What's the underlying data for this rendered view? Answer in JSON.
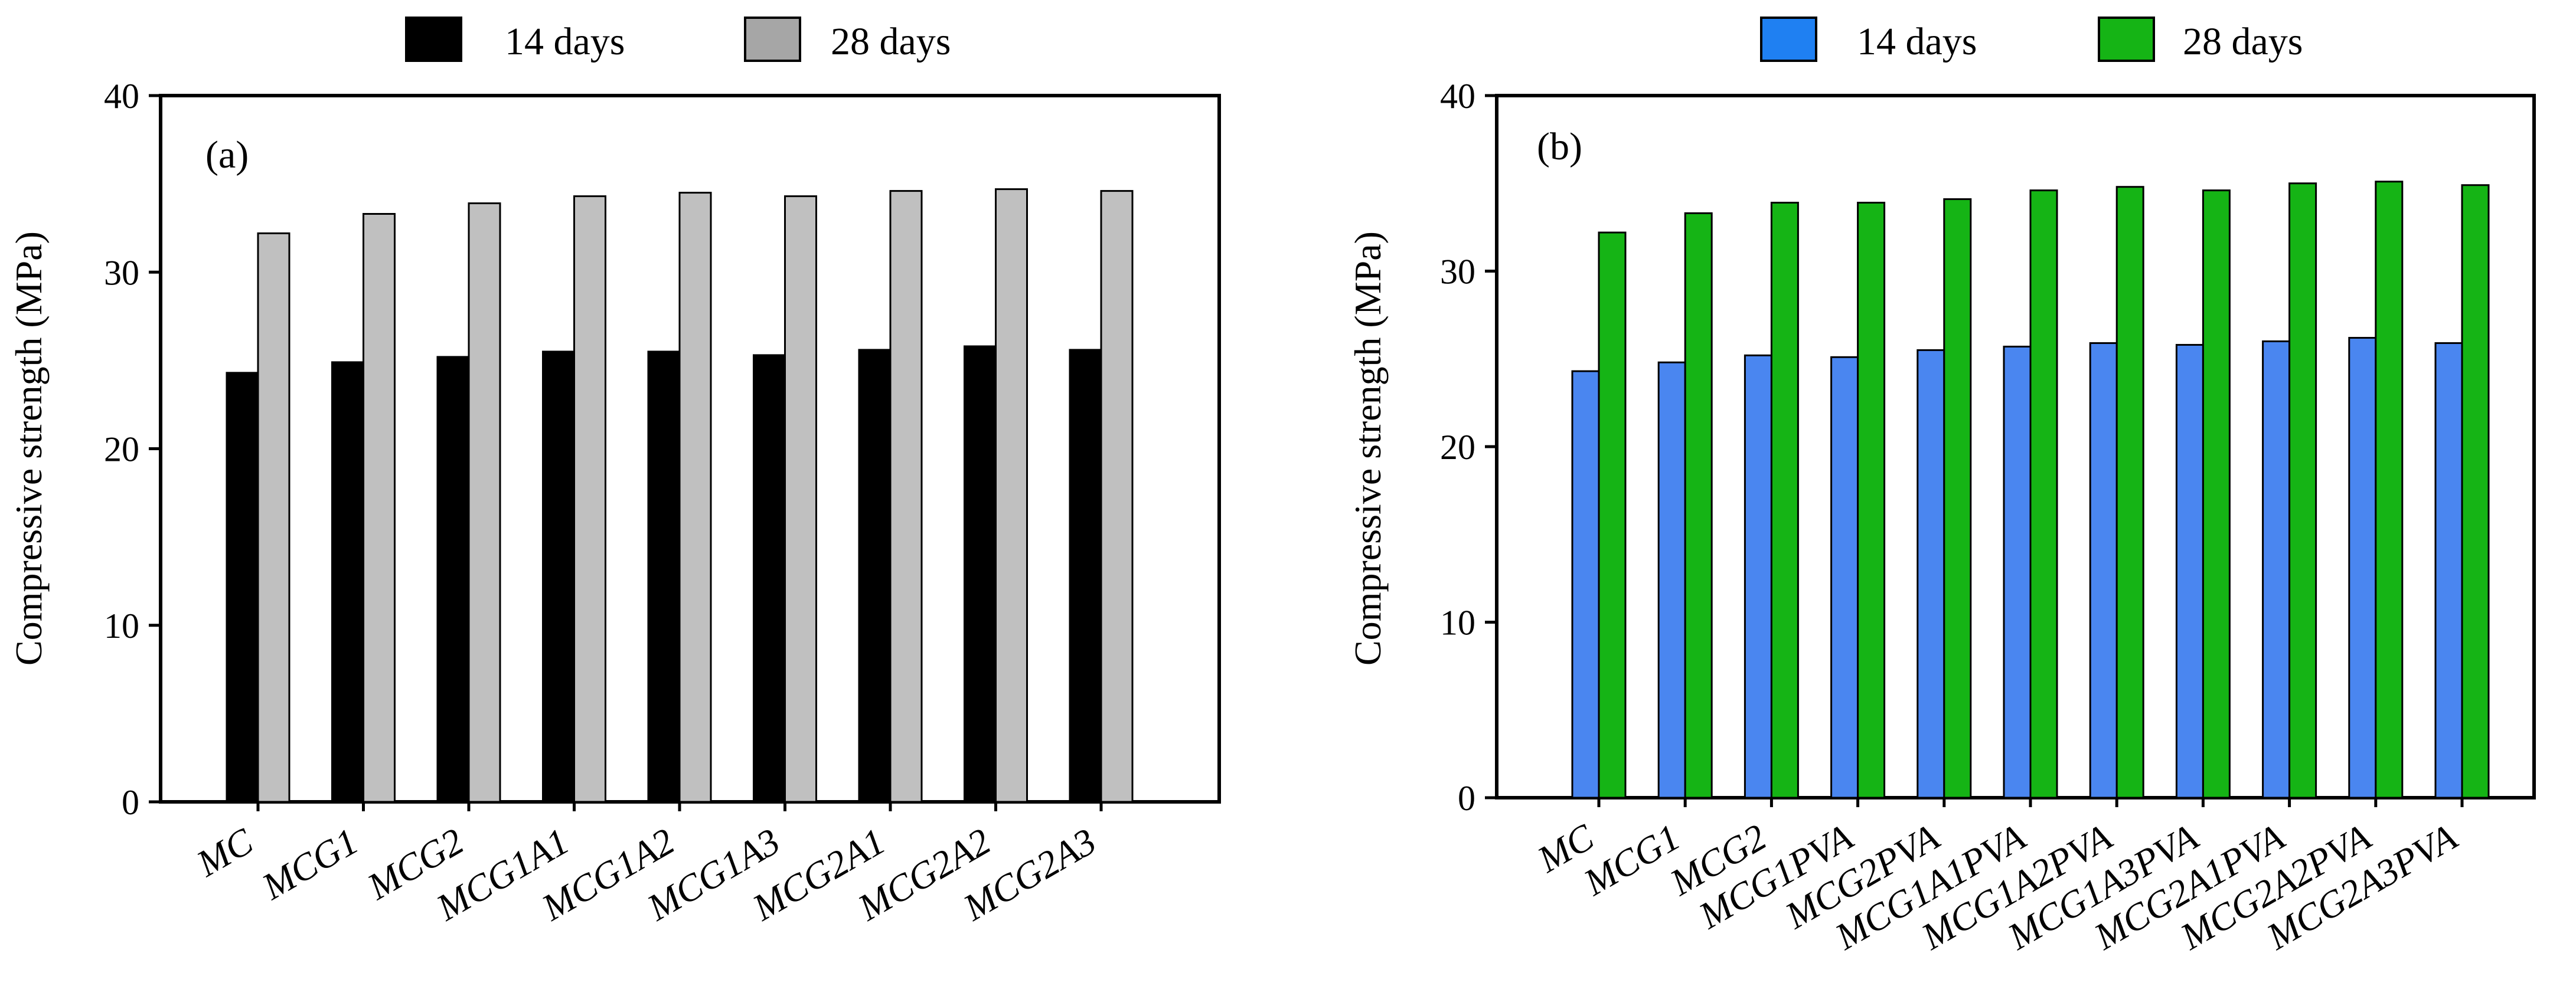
{
  "chart_data": [
    {
      "type": "bar",
      "panel_label": "(a)",
      "ylabel": "Compressive strength (MPa)",
      "xlabel": "",
      "ylim": [
        0,
        40
      ],
      "yticks": [
        0,
        10,
        20,
        30,
        40
      ],
      "grid": false,
      "legend_position": "top-center",
      "categories": [
        "MC",
        "MCG1",
        "MCG2",
        "MCG1A1",
        "MCG1A2",
        "MCG1A3",
        "MCG2A1",
        "MCG2A2",
        "MCG2A3"
      ],
      "series": [
        {
          "name": "14 days",
          "color": "#000000",
          "legend_color": "#000000",
          "values": [
            24.3,
            24.9,
            25.2,
            25.5,
            25.5,
            25.3,
            25.6,
            25.8,
            25.6
          ]
        },
        {
          "name": "28 days",
          "color": "#c0c0c0",
          "legend_color": "#a6a6a6",
          "values": [
            32.2,
            33.3,
            33.9,
            34.3,
            34.5,
            34.3,
            34.6,
            34.7,
            34.6
          ]
        }
      ]
    },
    {
      "type": "bar",
      "panel_label": "(b)",
      "ylabel": "Compressive strength (MPa)",
      "xlabel": "",
      "ylim": [
        0,
        40
      ],
      "yticks": [
        0,
        10,
        20,
        30,
        40
      ],
      "grid": false,
      "legend_position": "top-center",
      "categories": [
        "MC",
        "MCG1",
        "MCG2",
        "MCG1PVA",
        "MCG2PVA",
        "MCG1A1PVA",
        "MCG1A2PVA",
        "MCG1A3PVA",
        "MCG2A1PVA",
        "MCG2A2PVA",
        "MCG2A3PVA"
      ],
      "series": [
        {
          "name": "14 days",
          "color": "#4a86f0",
          "legend_color": "#1f80f2",
          "values": [
            24.3,
            24.8,
            25.2,
            25.1,
            25.5,
            25.7,
            25.9,
            25.8,
            26.0,
            26.2,
            25.9
          ]
        },
        {
          "name": "28 days",
          "color": "#15b415",
          "legend_color": "#15b415",
          "values": [
            32.2,
            33.3,
            33.9,
            33.9,
            34.1,
            34.6,
            34.8,
            34.6,
            35.0,
            35.1,
            34.9
          ]
        }
      ]
    }
  ]
}
